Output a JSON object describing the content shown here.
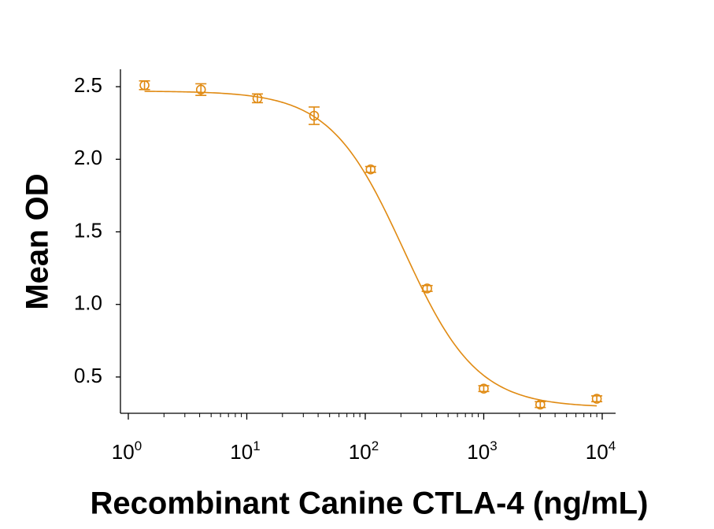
{
  "chart_data": {
    "type": "scatter",
    "title": "",
    "xlabel": "Recombinant Canine CTLA-4 (ng/mL)",
    "ylabel": "Mean OD",
    "x_scale": "log",
    "xlim": [
      1,
      10000
    ],
    "ylim": [
      0.25,
      2.62
    ],
    "x_ticks": [
      {
        "value": 1,
        "base": "10",
        "exp": "0"
      },
      {
        "value": 10,
        "base": "10",
        "exp": "1"
      },
      {
        "value": 100,
        "base": "10",
        "exp": "2"
      },
      {
        "value": 1000,
        "base": "10",
        "exp": "3"
      },
      {
        "value": 10000,
        "base": "10",
        "exp": "4"
      }
    ],
    "y_ticks": [
      {
        "value": 0.5,
        "label": "0.5"
      },
      {
        "value": 1.0,
        "label": "1.0"
      },
      {
        "value": 1.5,
        "label": "1.5"
      },
      {
        "value": 2.0,
        "label": "2.0"
      },
      {
        "value": 2.5,
        "label": "2.5"
      }
    ],
    "grid": false,
    "color": "#E08A12",
    "series": [
      {
        "x": [
          1.37,
          4.1,
          12.3,
          37,
          111,
          333,
          1000,
          3000,
          9000
        ],
        "y": [
          2.51,
          2.48,
          2.42,
          2.3,
          1.93,
          1.11,
          0.42,
          0.31,
          0.35
        ],
        "error": [
          0.03,
          0.04,
          0.03,
          0.06,
          0.02,
          0.02,
          0.02,
          0.02,
          0.02
        ]
      }
    ],
    "fit_curve": {
      "model": "4PL",
      "top": 2.47,
      "bottom": 0.29,
      "ec50": 210,
      "hill": 1.4
    }
  }
}
